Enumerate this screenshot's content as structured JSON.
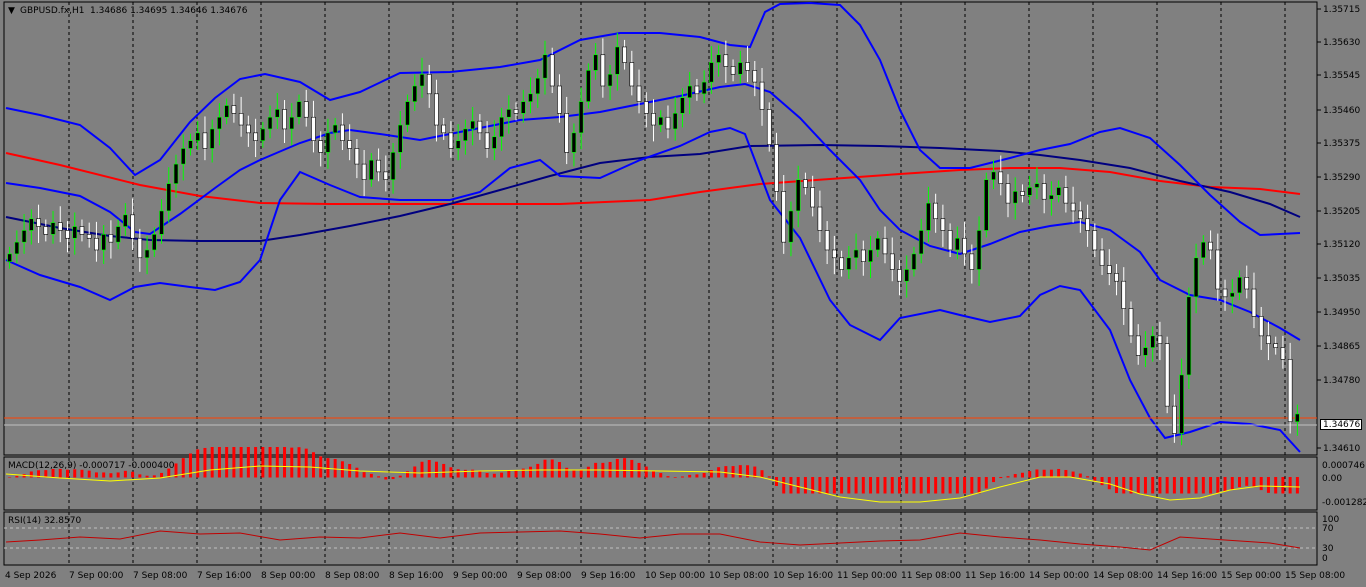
{
  "colors": {
    "background": "#808080",
    "grid": "#000000",
    "bull_candle": "#000000",
    "bear_candle": "#ffffff",
    "wick_bull": "#00ff00",
    "bollinger": "#0000ff",
    "ma_fast": "#000080",
    "ma_slow": "#ff0000",
    "macd_hist": "#ff0000",
    "macd_signal": "#ffff00",
    "rsi_line": "#ff0000",
    "current_price_line": "#ff4000"
  },
  "main_panel": {
    "title_arrow": "▼",
    "symbol": "GBPUSD.fx,H1",
    "ohlc": "1.34686 1.34695 1.34646 1.34676",
    "current_price": "1.34676",
    "price_labels": [
      "1.35715",
      "1.35630",
      "1.35545",
      "1.35460",
      "1.35375",
      "1.35290",
      "1.35205",
      "1.35120",
      "1.35035",
      "1.34950",
      "1.34865",
      "1.34780",
      "1.34610"
    ]
  },
  "macd_panel": {
    "label": "MACD(12,26,9) -0.000717 -0.000400",
    "scale_labels": [
      "0.000746",
      "0.00",
      "-0.001282"
    ]
  },
  "rsi_panel": {
    "label": "RSI(14) 32.8570",
    "scale_labels": [
      "100",
      "70",
      "30",
      "0"
    ]
  },
  "time_axis": [
    "4 Sep 2026",
    "7 Sep 00:00",
    "7 Sep 08:00",
    "7 Sep 16:00",
    "8 Sep 00:00",
    "8 Sep 08:00",
    "8 Sep 16:00",
    "9 Sep 00:00",
    "9 Sep 08:00",
    "9 Sep 16:00",
    "10 Sep 00:00",
    "10 Sep 08:00",
    "10 Sep 16:00",
    "11 Sep 00:00",
    "11 Sep 08:00",
    "11 Sep 16:00",
    "14 Sep 00:00",
    "14 Sep 08:00",
    "14 Sep 16:00",
    "15 Sep 00:00",
    "15 Sep 08:00"
  ],
  "chart_data": {
    "type": "candlestick",
    "symbol": "GBPUSD.fx",
    "timeframe": "H1",
    "price_range": [
      1.3458,
      1.3573
    ],
    "closes": [
      1.3509,
      1.3512,
      1.3515,
      1.3518,
      1.3516,
      1.3514,
      1.3517,
      1.3515,
      1.3513,
      1.3516,
      1.3514,
      1.3513,
      1.351,
      1.3514,
      1.3512,
      1.3516,
      1.3519,
      1.3513,
      1.3508,
      1.351,
      1.3514,
      1.352,
      1.3527,
      1.3532,
      1.3536,
      1.3538,
      1.354,
      1.3536,
      1.3541,
      1.3544,
      1.3547,
      1.3545,
      1.3542,
      1.354,
      1.3538,
      1.3541,
      1.3544,
      1.3546,
      1.3541,
      1.3544,
      1.3548,
      1.3544,
      1.3538,
      1.3535,
      1.354,
      1.3542,
      1.3538,
      1.3536,
      1.3532,
      1.3528,
      1.3533,
      1.353,
      1.3528,
      1.3535,
      1.3542,
      1.3548,
      1.3552,
      1.3555,
      1.355,
      1.3542,
      1.354,
      1.3536,
      1.3538,
      1.3541,
      1.3543,
      1.354,
      1.3536,
      1.3539,
      1.3544,
      1.3546,
      1.3545,
      1.3548,
      1.355,
      1.3554,
      1.356,
      1.3552,
      1.3545,
      1.3535,
      1.354,
      1.3548,
      1.3556,
      1.356,
      1.3552,
      1.3555,
      1.3562,
      1.3558,
      1.3552,
      1.3548,
      1.3545,
      1.3542,
      1.3544,
      1.3541,
      1.3545,
      1.3549,
      1.3552,
      1.355,
      1.3553,
      1.3558,
      1.356,
      1.3557,
      1.3555,
      1.3558,
      1.3556,
      1.3553,
      1.3546,
      1.3537,
      1.3525,
      1.3512,
      1.352,
      1.3528,
      1.3526,
      1.3521,
      1.3515,
      1.351,
      1.3508,
      1.3505,
      1.3508,
      1.351,
      1.3507,
      1.351,
      1.3513,
      1.3509,
      1.3505,
      1.3502,
      1.3505,
      1.3509,
      1.3515,
      1.3522,
      1.3518,
      1.3515,
      1.351,
      1.3513,
      1.3509,
      1.3505,
      1.3515,
      1.3528,
      1.353,
      1.3527,
      1.3522,
      1.3525,
      1.3524,
      1.3526,
      1.3527,
      1.3523,
      1.3524,
      1.3526,
      1.3522,
      1.352,
      1.3518,
      1.3515,
      1.351,
      1.3506,
      1.3504,
      1.3502,
      1.3495,
      1.3488,
      1.3483,
      1.3485,
      1.3488,
      1.3486,
      1.347,
      1.3463,
      1.3478,
      1.3498,
      1.3508,
      1.3512,
      1.351,
      1.35,
      1.3498,
      1.3499,
      1.3503,
      1.35,
      1.3493,
      1.3488,
      1.3486,
      1.3485,
      1.3482,
      1.3466,
      1.3468
    ]
  }
}
